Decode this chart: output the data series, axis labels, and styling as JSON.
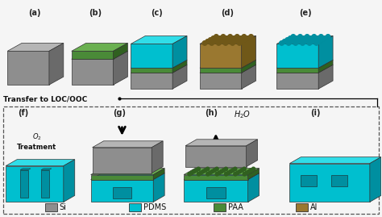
{
  "colors": {
    "si_front": "#8e8e8e",
    "si_top": "#b5b5b5",
    "si_side": "#6a6a6a",
    "pdms_front": "#00bfcf",
    "pdms_top": "#30dde8",
    "pdms_side": "#008fa0",
    "paa_front": "#4a8a38",
    "paa_top": "#6ab050",
    "paa_side": "#306020",
    "al_front": "#9a7830",
    "al_top": "#c09840",
    "al_side": "#705818",
    "bg": "#f5f5f5",
    "border": "#555555"
  },
  "legend": [
    {
      "label": "Si",
      "color": "#8e8e8e"
    },
    {
      "label": "PDMS",
      "color": "#00bfcf"
    },
    {
      "label": "PAA",
      "color": "#4a8a38"
    },
    {
      "label": "Al",
      "color": "#9a7830"
    }
  ],
  "panel_labels": [
    "(a)",
    "(b)",
    "(c)",
    "(d)",
    "(e)",
    "(f)",
    "(g)",
    "(h)",
    "(i)"
  ],
  "transfer_text": "Transfer to LOC/OOC"
}
